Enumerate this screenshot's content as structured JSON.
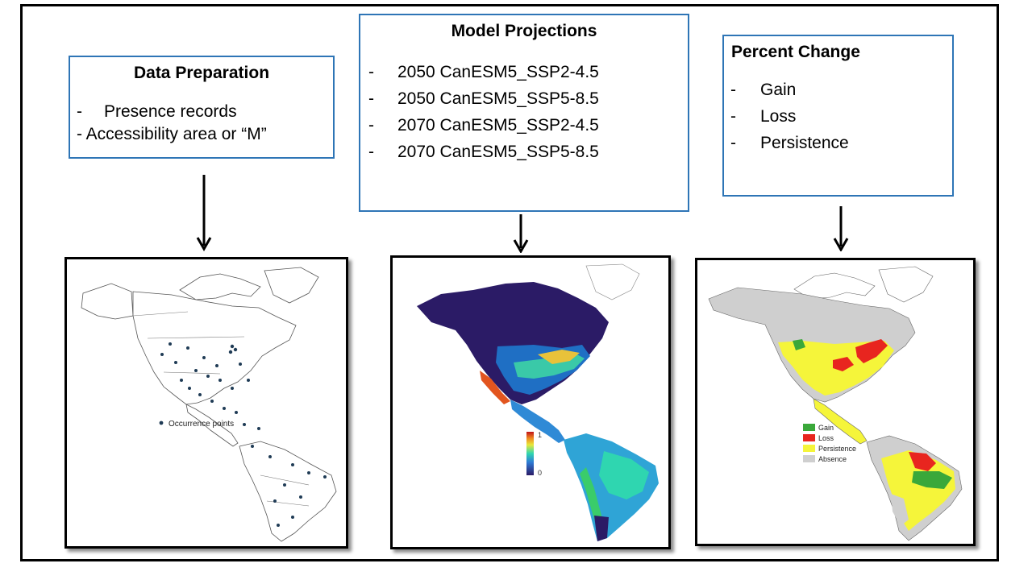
{
  "data_preparation": {
    "title": "Data Preparation",
    "items": [
      "Presence records",
      "- Accessibility area or “M”"
    ]
  },
  "model_projections": {
    "title": "Model Projections",
    "items": [
      "2050 CanESM5_SSP2-4.5",
      "2050 CanESM5_SSP5-8.5",
      "2070 CanESM5_SSP2-4.5",
      "2070 CanESM5_SSP5-8.5"
    ]
  },
  "percent_change": {
    "title": "Percent Change",
    "items": [
      "Gain",
      "Loss",
      "Persistence"
    ]
  },
  "maps": {
    "occurrence": {
      "legend_label": "Occurrence points"
    },
    "suitability": {
      "scale_max": "1",
      "scale_min": "0"
    },
    "change": {
      "legend": [
        {
          "label": "Gain",
          "color": "#3aa83a"
        },
        {
          "label": "Loss",
          "color": "#e8251f"
        },
        {
          "label": "Persistence",
          "color": "#f5f53a"
        },
        {
          "label": "Absence",
          "color": "#cfcfcf"
        }
      ]
    }
  }
}
